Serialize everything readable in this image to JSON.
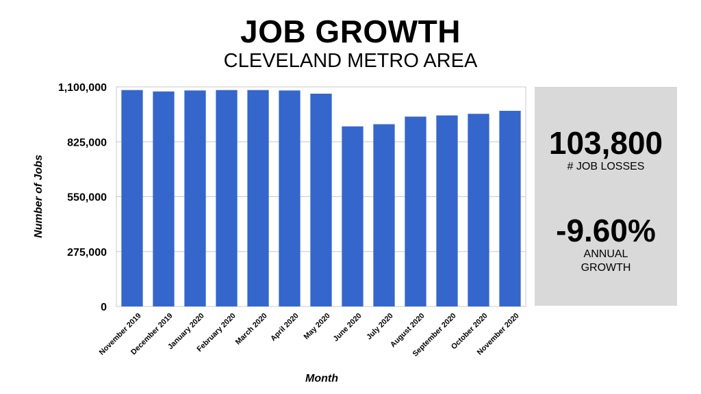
{
  "header": {
    "title": "JOB GROWTH",
    "subtitle": "CLEVELAND METRO AREA"
  },
  "stats": {
    "job_losses_value": "103,800",
    "job_losses_label": "# JOB LOSSES",
    "annual_growth_value": "-9.60%",
    "annual_growth_label": "ANNUAL GROWTH"
  },
  "colors": {
    "bar": "#3566cc",
    "panel": "#d9d9d9",
    "gridline": "#c8c8c8"
  },
  "chart_data": {
    "type": "bar",
    "categories": [
      "November 2019",
      "December 2019",
      "January 2020",
      "February 2020",
      "March 2020",
      "April 2020",
      "May 2020",
      "June 2020",
      "July 2020",
      "August 2020",
      "September 2020",
      "October 2020",
      "November 2020"
    ],
    "values": [
      1084000,
      1077000,
      1082000,
      1084000,
      1084000,
      1082000,
      1066000,
      902000,
      913000,
      951000,
      957000,
      965000,
      980000
    ],
    "xlabel": "Month",
    "ylabel": "Number of Jobs",
    "ylim": [
      0,
      1100000
    ],
    "yticks": [
      0,
      275000,
      550000,
      825000,
      1100000
    ],
    "ytick_labels": [
      "0",
      "275,000",
      "550,000",
      "825,000",
      "1,100,000"
    ],
    "grid": true,
    "legend": "none"
  }
}
